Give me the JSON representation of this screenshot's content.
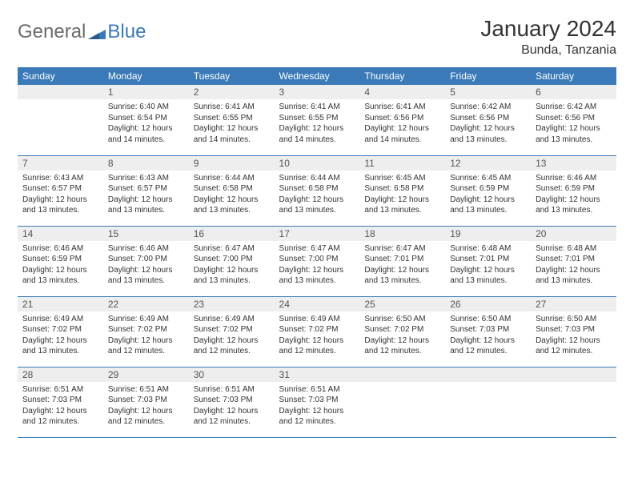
{
  "logo": {
    "text_general": "General",
    "text_blue": "Blue"
  },
  "header": {
    "title": "January 2024",
    "subtitle": "Bunda, Tanzania"
  },
  "colors": {
    "header_bg": "#3a7ab8",
    "daynum_bg": "#eeeeee",
    "row_border": "#3a7ab8"
  },
  "weekdays": [
    "Sunday",
    "Monday",
    "Tuesday",
    "Wednesday",
    "Thursday",
    "Friday",
    "Saturday"
  ],
  "leading_blanks": 1,
  "days": [
    {
      "n": "1",
      "sunrise": "6:40 AM",
      "sunset": "6:54 PM",
      "daylight": "12 hours and 14 minutes."
    },
    {
      "n": "2",
      "sunrise": "6:41 AM",
      "sunset": "6:55 PM",
      "daylight": "12 hours and 14 minutes."
    },
    {
      "n": "3",
      "sunrise": "6:41 AM",
      "sunset": "6:55 PM",
      "daylight": "12 hours and 14 minutes."
    },
    {
      "n": "4",
      "sunrise": "6:41 AM",
      "sunset": "6:56 PM",
      "daylight": "12 hours and 14 minutes."
    },
    {
      "n": "5",
      "sunrise": "6:42 AM",
      "sunset": "6:56 PM",
      "daylight": "12 hours and 13 minutes."
    },
    {
      "n": "6",
      "sunrise": "6:42 AM",
      "sunset": "6:56 PM",
      "daylight": "12 hours and 13 minutes."
    },
    {
      "n": "7",
      "sunrise": "6:43 AM",
      "sunset": "6:57 PM",
      "daylight": "12 hours and 13 minutes."
    },
    {
      "n": "8",
      "sunrise": "6:43 AM",
      "sunset": "6:57 PM",
      "daylight": "12 hours and 13 minutes."
    },
    {
      "n": "9",
      "sunrise": "6:44 AM",
      "sunset": "6:58 PM",
      "daylight": "12 hours and 13 minutes."
    },
    {
      "n": "10",
      "sunrise": "6:44 AM",
      "sunset": "6:58 PM",
      "daylight": "12 hours and 13 minutes."
    },
    {
      "n": "11",
      "sunrise": "6:45 AM",
      "sunset": "6:58 PM",
      "daylight": "12 hours and 13 minutes."
    },
    {
      "n": "12",
      "sunrise": "6:45 AM",
      "sunset": "6:59 PM",
      "daylight": "12 hours and 13 minutes."
    },
    {
      "n": "13",
      "sunrise": "6:46 AM",
      "sunset": "6:59 PM",
      "daylight": "12 hours and 13 minutes."
    },
    {
      "n": "14",
      "sunrise": "6:46 AM",
      "sunset": "6:59 PM",
      "daylight": "12 hours and 13 minutes."
    },
    {
      "n": "15",
      "sunrise": "6:46 AM",
      "sunset": "7:00 PM",
      "daylight": "12 hours and 13 minutes."
    },
    {
      "n": "16",
      "sunrise": "6:47 AM",
      "sunset": "7:00 PM",
      "daylight": "12 hours and 13 minutes."
    },
    {
      "n": "17",
      "sunrise": "6:47 AM",
      "sunset": "7:00 PM",
      "daylight": "12 hours and 13 minutes."
    },
    {
      "n": "18",
      "sunrise": "6:47 AM",
      "sunset": "7:01 PM",
      "daylight": "12 hours and 13 minutes."
    },
    {
      "n": "19",
      "sunrise": "6:48 AM",
      "sunset": "7:01 PM",
      "daylight": "12 hours and 13 minutes."
    },
    {
      "n": "20",
      "sunrise": "6:48 AM",
      "sunset": "7:01 PM",
      "daylight": "12 hours and 13 minutes."
    },
    {
      "n": "21",
      "sunrise": "6:49 AM",
      "sunset": "7:02 PM",
      "daylight": "12 hours and 13 minutes."
    },
    {
      "n": "22",
      "sunrise": "6:49 AM",
      "sunset": "7:02 PM",
      "daylight": "12 hours and 12 minutes."
    },
    {
      "n": "23",
      "sunrise": "6:49 AM",
      "sunset": "7:02 PM",
      "daylight": "12 hours and 12 minutes."
    },
    {
      "n": "24",
      "sunrise": "6:49 AM",
      "sunset": "7:02 PM",
      "daylight": "12 hours and 12 minutes."
    },
    {
      "n": "25",
      "sunrise": "6:50 AM",
      "sunset": "7:02 PM",
      "daylight": "12 hours and 12 minutes."
    },
    {
      "n": "26",
      "sunrise": "6:50 AM",
      "sunset": "7:03 PM",
      "daylight": "12 hours and 12 minutes."
    },
    {
      "n": "27",
      "sunrise": "6:50 AM",
      "sunset": "7:03 PM",
      "daylight": "12 hours and 12 minutes."
    },
    {
      "n": "28",
      "sunrise": "6:51 AM",
      "sunset": "7:03 PM",
      "daylight": "12 hours and 12 minutes."
    },
    {
      "n": "29",
      "sunrise": "6:51 AM",
      "sunset": "7:03 PM",
      "daylight": "12 hours and 12 minutes."
    },
    {
      "n": "30",
      "sunrise": "6:51 AM",
      "sunset": "7:03 PM",
      "daylight": "12 hours and 12 minutes."
    },
    {
      "n": "31",
      "sunrise": "6:51 AM",
      "sunset": "7:03 PM",
      "daylight": "12 hours and 12 minutes."
    }
  ],
  "labels": {
    "sunrise": "Sunrise:",
    "sunset": "Sunset:",
    "daylight": "Daylight:"
  }
}
